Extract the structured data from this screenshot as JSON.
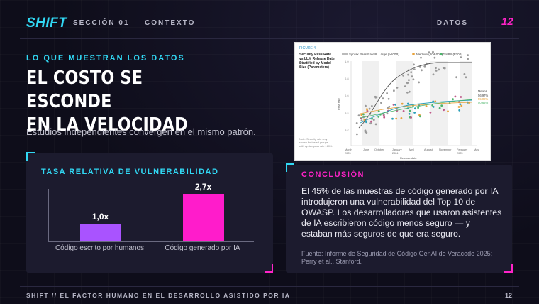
{
  "header": {
    "logo": "SHIFT",
    "section": "SECCIÓN 01 — CONTEXTO",
    "tag": "DATOS",
    "page": "12"
  },
  "main": {
    "eyebrow": "LO QUE MUESTRAN LOS DATOS",
    "title_line1": "EL COSTO SE ESCONDE",
    "title_line2": "EN LA VELOCIDAD",
    "subtitle": "Estudios independientes convergen en el mismo patrón."
  },
  "figure": {
    "label": "FIGURE 4",
    "title_lines": [
      "Security Pass Rate",
      "vs LLM Release Date,",
      "Stratified by Model",
      "Size (Parameters)"
    ],
    "legend": [
      "Syntax Pass Rate",
      "Large (>100B)",
      "Medium (20-100B)",
      "Small (<20B)"
    ],
    "yticks": [
      "1.0",
      "0.8",
      "0.6",
      "0.4",
      "0.2"
    ],
    "ylabel": "Pass rate",
    "xticks": [
      "March",
      "2023",
      "June",
      "October",
      "January",
      "2024",
      "April",
      "August",
      "November",
      "February",
      "2025",
      "May"
    ],
    "xlabel": "Release date",
    "mean_label": "Means",
    "mean_values": [
      "56.97%",
      "55.08%",
      "50.65%"
    ],
    "note_lines": [
      "Note: Security rate only",
      "shown for tested groups",
      "with syntax pass rate >80%"
    ]
  },
  "chart_data": {
    "type": "bar",
    "title": "TASA RELATIVA DE VULNERABILIDAD",
    "categories": [
      "Código escrito por humanos",
      "Código generado por IA"
    ],
    "values": [
      1.0,
      2.7
    ],
    "labels": [
      "1,0x",
      "2,7x"
    ],
    "colors": [
      "#a953ff",
      "#ff1ccb"
    ],
    "ylim": [
      0,
      3.0
    ]
  },
  "conclusion": {
    "title": "CONCLUSIÓN",
    "body": "El 45% de las muestras de código generado por IA introdujeron una vulnerabilidad del Top 10 de OWASP. Los desarrolladores que usaron asistentes de IA escribieron código menos seguro — y estaban más seguros de que era seguro.",
    "source": "Fuente: Informe de Seguridad de Código GenAI de Veracode 2025; Perry et al., Stanford."
  },
  "footer": {
    "text": "SHIFT // EL FACTOR HUMANO EN EL DESARROLLO ASISTIDO POR IA",
    "page": "12"
  }
}
